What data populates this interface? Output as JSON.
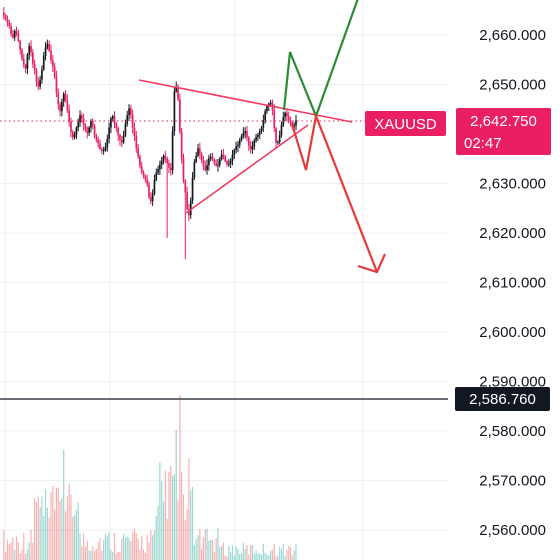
{
  "chart_data": {
    "type": "candlestick",
    "symbol": "XAUUSD",
    "last_price": "2,642.750",
    "countdown": "02:47",
    "reference_price": "2,586.760",
    "reference_value": 2586.76,
    "current_value": 2642.75,
    "y_axis": {
      "range": [
        2556,
        2668
      ],
      "ticks": [
        {
          "value": 2660,
          "label": "2,660.000"
        },
        {
          "value": 2650,
          "label": "2,650.000"
        },
        {
          "value": 2630,
          "label": "2,630.000"
        },
        {
          "value": 2620,
          "label": "2,620.000"
        },
        {
          "value": 2610,
          "label": "2,610.000"
        },
        {
          "value": 2600,
          "label": "2,600.000"
        },
        {
          "value": 2590,
          "label": "2,590.000"
        },
        {
          "value": 2580,
          "label": "2,580.000"
        },
        {
          "value": 2570,
          "label": "2,570.000"
        },
        {
          "value": 2560,
          "label": "2,560.000"
        }
      ]
    },
    "grid": true,
    "price_path": [
      2664.5,
      2664,
      2663.2,
      2662.5,
      2661.8,
      2660.2,
      2659.5,
      2660.8,
      2660.4,
      2658.8,
      2657,
      2655.2,
      2654,
      2653.2,
      2656,
      2657.8,
      2656.5,
      2654.2,
      2652.8,
      2650.5,
      2649.6,
      2651,
      2653,
      2655.8,
      2657.5,
      2658.2,
      2656.8,
      2654.9,
      2653.6,
      2651.6,
      2648.3,
      2646,
      2644.6,
      2646.5,
      2648.1,
      2646.8,
      2644.8,
      2642.6,
      2640.4,
      2639.3,
      2639.9,
      2641.3,
      2642.4,
      2643.8,
      2643.1,
      2641.7,
      2640.8,
      2640.2,
      2641.3,
      2642.7,
      2641.7,
      2639.7,
      2638.8,
      2638.1,
      2637,
      2636.6,
      2636.7,
      2637.3,
      2639,
      2641.3,
      2643.1,
      2643.6,
      2642.2,
      2641.2,
      2639.8,
      2638.8,
      2638.3,
      2639.7,
      2642.1,
      2643.8,
      2645.2,
      2643.9,
      2641.2,
      2639.6,
      2637.2,
      2635.5,
      2633.5,
      2632.3,
      2631.6,
      2630.8,
      2629.8,
      2627.2,
      2626.4,
      2627.9,
      2630.7,
      2632.2,
      2632.9,
      2633.8,
      2634.6,
      2635.6,
      2635.1,
      2634.1,
      2633.2,
      2632.7,
      2640.6,
      2648.6,
      2649.5,
      2647,
      2640.5,
      2635.1,
      2630.6,
      2628.2,
      2624.8,
      2623.6,
      2626.5,
      2631.2,
      2634.4,
      2635.6,
      2637.1,
      2636,
      2634.7,
      2633.5,
      2632.7,
      2633.7,
      2635.1,
      2635.4,
      2634.8,
      2634.1,
      2633.6,
      2633.8,
      2634.9,
      2635.8,
      2635.5,
      2634.5,
      2633.8,
      2634,
      2634.6,
      2635.8,
      2636.8,
      2637.5,
      2637.8,
      2638.8,
      2639.6,
      2640.2,
      2640.6,
      2639.3,
      2637.6,
      2636.9,
      2637.5,
      2638.7,
      2639.4,
      2639.8,
      2640.6,
      2641.3,
      2642.8,
      2644.6,
      2645.6,
      2646.1,
      2646.3,
      2644.9,
      2641.2,
      2638.3,
      2638.4,
      2639.8,
      2641.8,
      2643.4,
      2644.3,
      2643.6,
      2642.6,
      2642.4,
      2641.7,
      2641.7,
      2642.75
    ]
  }
}
